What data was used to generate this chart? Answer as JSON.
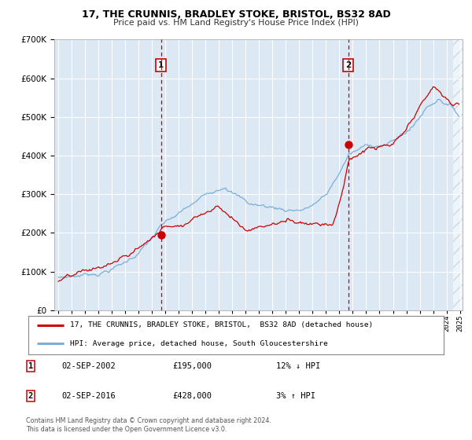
{
  "title": "17, THE CRUNNIS, BRADLEY STOKE, BRISTOL, BS32 8AD",
  "subtitle": "Price paid vs. HM Land Registry's House Price Index (HPI)",
  "legend_label_red": "17, THE CRUNNIS, BRADLEY STOKE, BRISTOL,  BS32 8AD (detached house)",
  "legend_label_blue": "HPI: Average price, detached house, South Gloucestershire",
  "transaction1_date": "02-SEP-2002",
  "transaction1_price": "£195,000",
  "transaction1_hpi": "12% ↓ HPI",
  "transaction2_date": "02-SEP-2016",
  "transaction2_price": "£428,000",
  "transaction2_hpi": "3% ↑ HPI",
  "footer1": "Contains HM Land Registry data © Crown copyright and database right 2024.",
  "footer2": "This data is licensed under the Open Government Licence v3.0.",
  "plot_bg_color": "#dce9f5",
  "white": "#ffffff",
  "red_color": "#cc0000",
  "blue_color": "#7aadda",
  "vline_color": "#cc0000",
  "ylim_min": 0,
  "ylim_max": 700000,
  "year_start": 1995,
  "year_end": 2025,
  "transaction1_year": 2002.67,
  "transaction2_year": 2016.67,
  "transaction1_val": 195000,
  "transaction2_val": 428000
}
